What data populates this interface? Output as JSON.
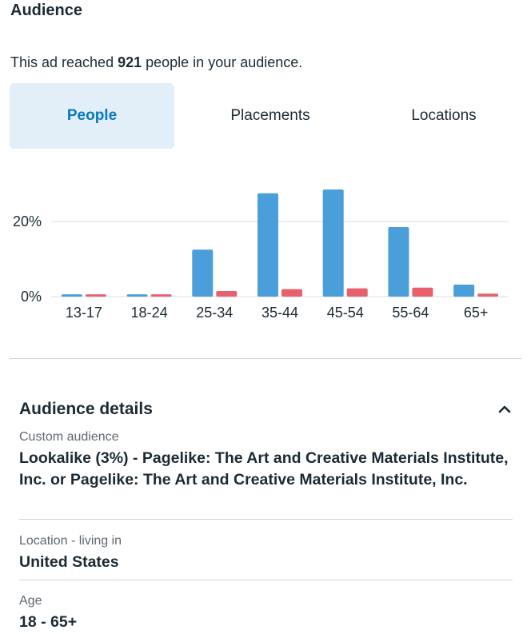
{
  "audience": {
    "title": "Audience",
    "reach_prefix": "This ad reached ",
    "reach_count": "921",
    "reach_suffix": " people in your audience."
  },
  "tabs": [
    {
      "label": "People",
      "active": true
    },
    {
      "label": "Placements",
      "active": false
    },
    {
      "label": "Locations",
      "active": false
    }
  ],
  "colors": {
    "series_a": "#4a9fdb",
    "series_b": "#e8606e",
    "accent": "#0a78be"
  },
  "chart_data": {
    "type": "bar",
    "categories": [
      "13-17",
      "18-24",
      "25-34",
      "35-44",
      "45-54",
      "55-64",
      "65+"
    ],
    "series": [
      {
        "values": [
          0.6,
          0.6,
          12.5,
          27.5,
          28.5,
          18.5,
          3.2
        ]
      },
      {
        "values": [
          0.6,
          0.6,
          1.5,
          2.0,
          2.2,
          2.4,
          0.8
        ]
      }
    ],
    "yticks": [
      "0%",
      "20%"
    ],
    "ylim": [
      0,
      30
    ],
    "grid": true
  },
  "details": {
    "title": "Audience details",
    "items": [
      {
        "label": "Custom audience",
        "value": "Lookalike (3%) - Pagelike: The Art and Creative Materials Institute, Inc. or Pagelike: The Art and Creative Materials Institute, Inc."
      },
      {
        "label": "Location - living in",
        "value": "United States"
      },
      {
        "label": "Age",
        "value": "18 - 65+"
      }
    ]
  }
}
